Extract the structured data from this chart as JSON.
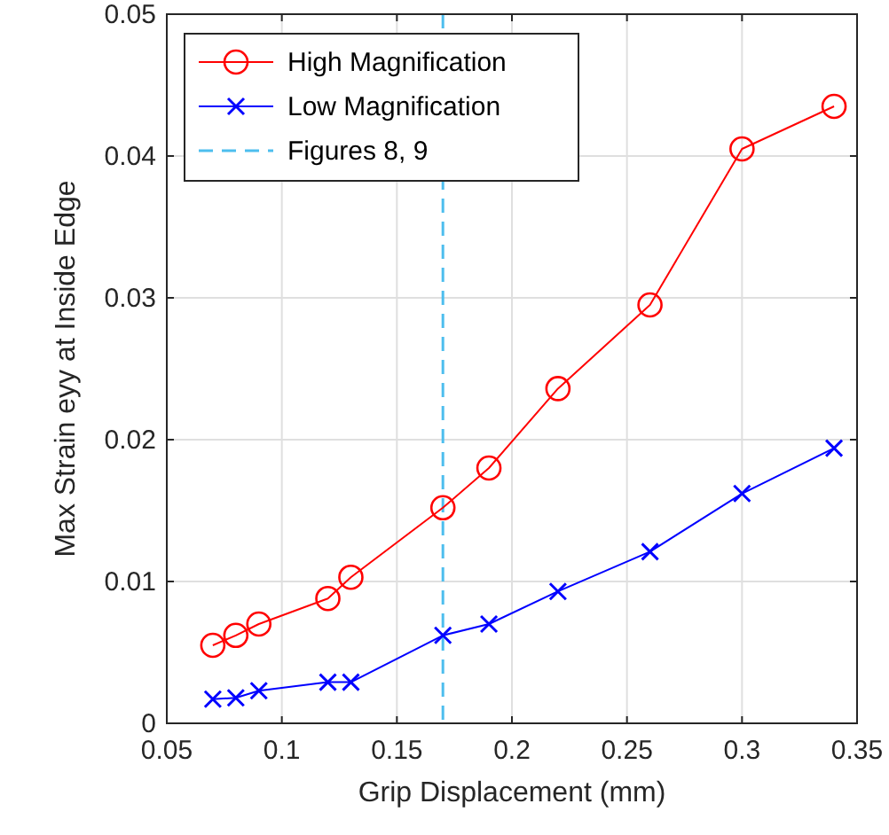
{
  "chart_data": {
    "type": "line",
    "xlabel": "Grip Displacement (mm)",
    "ylabel": "Max Strain eyy at Inside Edge",
    "x": [
      0.07,
      0.08,
      0.09,
      0.12,
      0.13,
      0.17,
      0.19,
      0.22,
      0.26,
      0.3,
      0.34
    ],
    "series": [
      {
        "name": "High Magnification",
        "color": "#ff0000",
        "marker": "circle",
        "values": [
          0.0055,
          0.0062,
          0.007,
          0.0088,
          0.0103,
          0.0152,
          0.018,
          0.0236,
          0.0295,
          0.0405,
          0.0435
        ]
      },
      {
        "name": "Low Magnification",
        "color": "#0000ff",
        "marker": "cross",
        "values": [
          0.0017,
          0.0018,
          0.0023,
          0.0029,
          0.0029,
          0.0062,
          0.007,
          0.0093,
          0.0121,
          0.0162,
          0.0194
        ]
      }
    ],
    "ref_lines": [
      {
        "axis": "x",
        "value": 0.17,
        "label": "Figures 8, 9",
        "color": "#4dbeee",
        "line_style": "dashed"
      }
    ],
    "xlim": [
      0.05,
      0.35
    ],
    "xticks": [
      0.05,
      0.1,
      0.15,
      0.2,
      0.25,
      0.3,
      0.35
    ],
    "ylim": [
      0,
      0.05
    ],
    "yticks": [
      0,
      0.01,
      0.02,
      0.03,
      0.04,
      0.05
    ],
    "grid": true,
    "legend": "top left"
  }
}
